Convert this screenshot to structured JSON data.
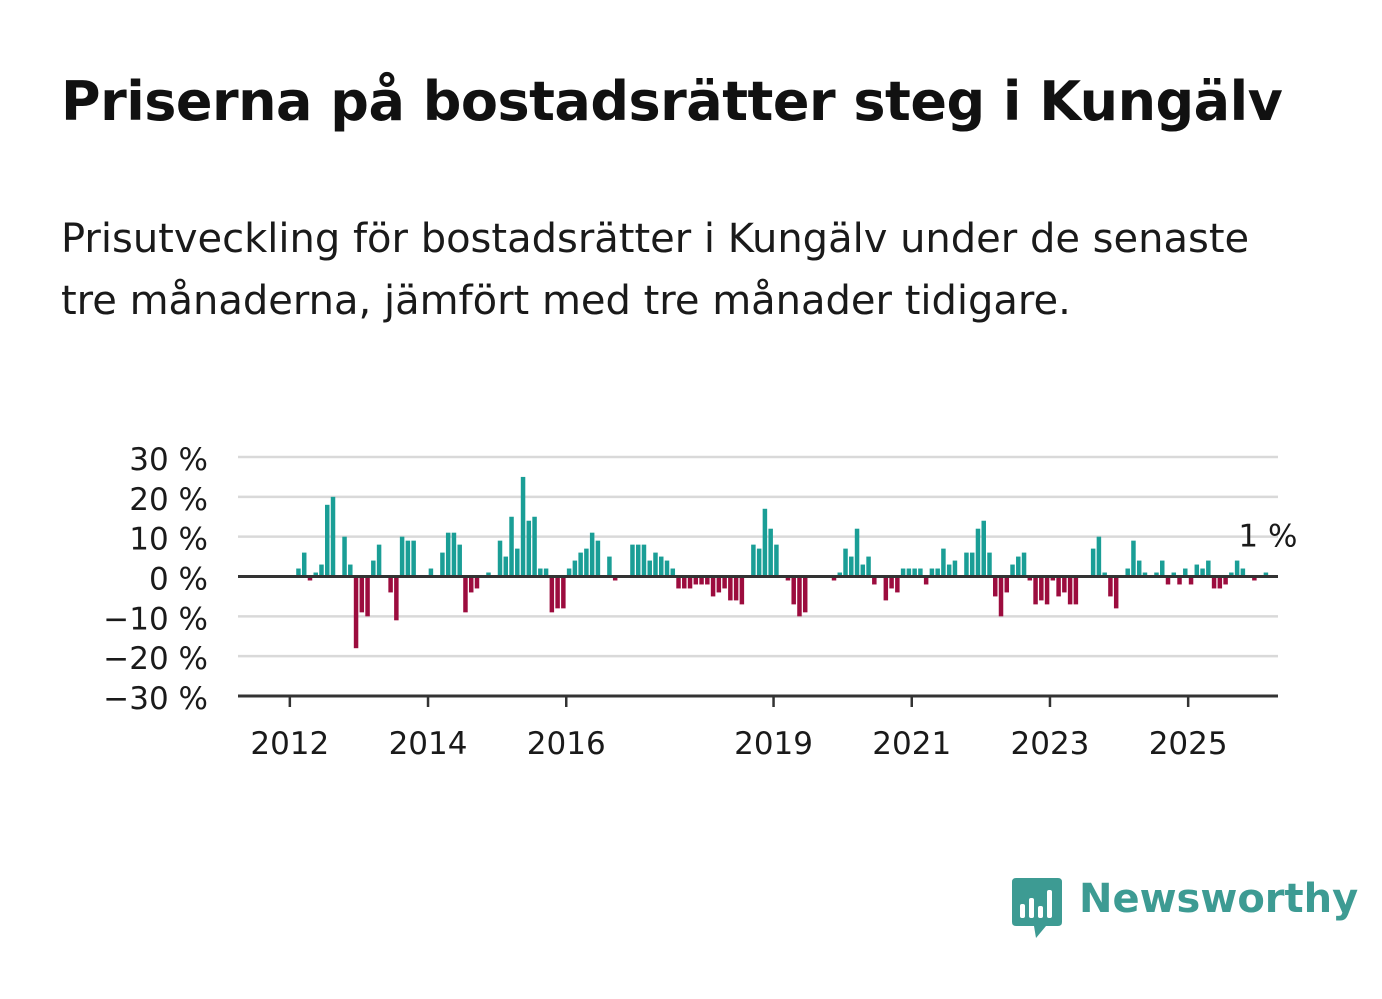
{
  "title": "Priserna på bostadsrätter steg i Kungälv",
  "subtitle": "Prisutveckling för bostadsrätter i Kungälv under de senaste tre månaderna, jämfört med tre månader tidigare.",
  "brand": "Newsworthy",
  "colors": {
    "positive": "#1a9e96",
    "negative": "#9c0c3e",
    "grid": "#d9d9d9",
    "axis": "#333333",
    "text": "#1a1a1a",
    "brand": "#3d9b93"
  },
  "chart_data": {
    "type": "bar",
    "title": "Priserna på bostadsrätter steg i Kungälv",
    "ylabel": "",
    "xlabel": "",
    "ylim": [
      -30,
      30
    ],
    "y_ticks": [
      30,
      20,
      10,
      0,
      -10,
      -20,
      -30
    ],
    "y_tick_labels": [
      "30 %",
      "20 %",
      "10 %",
      "0 %",
      "−10 %",
      "−20 %",
      "−30 %"
    ],
    "x_ticks": [
      2012,
      2014,
      2016,
      2019,
      2021,
      2023,
      2025
    ],
    "x_tick_labels": [
      "2012",
      "2014",
      "2016",
      "2019",
      "2021",
      "2023",
      "2025"
    ],
    "x_range": [
      2011.25,
      2026.3
    ],
    "grid": true,
    "start": "2012-01",
    "frequency": "monthly",
    "series": [
      {
        "values": [
          0,
          2,
          6,
          -1,
          1,
          3,
          18,
          20,
          0,
          10,
          3,
          -18,
          -9,
          -10,
          4,
          8,
          0,
          -4,
          -11,
          10,
          9,
          9,
          0,
          0,
          2,
          0,
          6,
          11,
          11,
          8,
          -9,
          -4,
          -3,
          0,
          1,
          0,
          9,
          5,
          15,
          7,
          25,
          14,
          15,
          2,
          2,
          -9,
          -8,
          -8,
          2,
          4,
          6,
          7,
          11,
          9,
          0,
          5,
          -1,
          0,
          0,
          8,
          8,
          8,
          4,
          6,
          5,
          4,
          2,
          -3,
          -3,
          -3,
          -2,
          -2,
          -2,
          -5,
          -4,
          -3,
          -6,
          -6,
          -7,
          0,
          8,
          7,
          17,
          12,
          8,
          0,
          -1,
          -7,
          -10,
          -9,
          0,
          0,
          0,
          0,
          -1,
          1,
          7,
          5,
          12,
          3,
          5,
          -2,
          0,
          -6,
          -3,
          -4,
          2,
          2,
          2,
          2,
          -2,
          2,
          2,
          7,
          3,
          4,
          0,
          6,
          6,
          12,
          14,
          6,
          -5,
          -10,
          -4,
          3,
          5,
          6,
          -1,
          -7,
          -6,
          -7,
          -1,
          -5,
          -4,
          -7,
          -7,
          0,
          0,
          7,
          10,
          1,
          -5,
          -8,
          0,
          2,
          9,
          4,
          1,
          0,
          1,
          4,
          -2,
          1,
          -2,
          2,
          -2,
          3,
          2,
          4,
          -3,
          -3,
          -2,
          1,
          4,
          2,
          0,
          -1,
          0,
          1
        ]
      }
    ],
    "annotations": [
      {
        "text": "1 %",
        "target": "last value"
      }
    ]
  }
}
